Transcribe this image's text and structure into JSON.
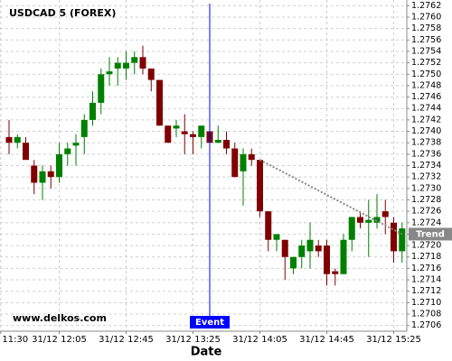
{
  "chart_data": {
    "type": "candlestick",
    "title": "USDCAD 5 (FOREX)",
    "watermark": "www.delkos.com",
    "x_label": "Date",
    "up_color": "#008000",
    "down_color": "#800000",
    "grid": true,
    "ylim": [
      1.2705,
      1.2763
    ],
    "yticks": [
      1.2706,
      1.2708,
      {
        "value": 1.271,
        "label": "1.2710"
      },
      1.2712,
      1.2714,
      1.2716,
      1.2718,
      {
        "value": 1.272,
        "label": "1.2720"
      },
      1.2722,
      1.2724,
      1.2726,
      1.2728,
      {
        "value": 1.273,
        "label": "1.2730"
      },
      1.2732,
      1.2734,
      1.2736,
      1.2738,
      {
        "value": 1.274,
        "label": "1.2740"
      },
      1.2742,
      1.2744,
      1.2746,
      1.2748,
      {
        "value": 1.275,
        "label": "1.2750"
      },
      1.2752,
      1.2754,
      1.2756,
      1.2758,
      {
        "value": 1.276,
        "label": "1.2760"
      },
      1.2762
    ],
    "xticks": [
      "31/12 11:30",
      "31/12 12:05",
      "31/12 12:45",
      "31/12 13:25",
      "31/12 14:05",
      "31/12 14:45",
      "31/12 15:25"
    ],
    "x": [
      "31/12 11:35",
      "31/12 11:40",
      "31/12 11:45",
      "31/12 11:50",
      "31/12 11:55",
      "31/12 12:00",
      "31/12 12:05",
      "31/12 12:10",
      "31/12 12:15",
      "31/12 12:20",
      "31/12 12:25",
      "31/12 12:30",
      "31/12 12:35",
      "31/12 12:40",
      "31/12 12:45",
      "31/12 12:50",
      "31/12 12:55",
      "31/12 13:00",
      "31/12 13:05",
      "31/12 13:10",
      "31/12 13:15",
      "31/12 13:20",
      "31/12 13:25",
      "31/12 13:30",
      "31/12 13:35",
      "31/12 13:40",
      "31/12 13:45",
      "31/12 13:50",
      "31/12 13:55",
      "31/12 14:00",
      "31/12 14:05",
      "31/12 14:10",
      "31/12 14:15",
      "31/12 14:20",
      "31/12 14:25",
      "31/12 14:30",
      "31/12 14:35",
      "31/12 14:40",
      "31/12 14:45",
      "31/12 14:50",
      "31/12 14:55",
      "31/12 15:00",
      "31/12 15:05",
      "31/12 15:10",
      "31/12 15:15",
      "31/12 15:20",
      "31/12 15:25",
      "31/12 15:30"
    ],
    "open": [
      1.2739,
      1.2738,
      1.2738,
      1.2734,
      1.2731,
      1.2733,
      1.2732,
      1.2736,
      1.27375,
      1.2739,
      1.2742,
      1.2745,
      1.275,
      1.2751,
      1.2751,
      1.2752,
      1.2753,
      1.2751,
      1.2749,
      1.2741,
      1.27405,
      1.274,
      1.27395,
      1.2739,
      1.274,
      1.2738,
      1.27385,
      1.2737,
      1.2733,
      1.2736,
      1.2735,
      1.2726,
      1.2721,
      1.2721,
      1.2716,
      1.2718,
      1.2719,
      1.272,
      1.272,
      1.27155,
      1.2715,
      1.2721,
      1.2725,
      1.2724,
      1.2724,
      1.2726,
      1.2724,
      1.2719
    ],
    "high": [
      1.2742,
      1.27395,
      1.2739,
      1.2735,
      1.2734,
      1.2734,
      1.2738,
      1.2738,
      1.27395,
      1.2743,
      1.2747,
      1.2751,
      1.2753,
      1.2753,
      1.2754,
      1.2754,
      1.2755,
      1.2751,
      1.2749,
      1.2741,
      1.2742,
      1.2743,
      1.274,
      1.2741,
      1.2742,
      1.2741,
      1.274,
      1.2738,
      1.2737,
      1.2737,
      1.2735,
      1.2726,
      1.2722,
      1.2721,
      1.2718,
      1.2721,
      1.2724,
      1.2721,
      1.2721,
      1.2716,
      1.2722,
      1.2725,
      1.2726,
      1.2728,
      1.2729,
      1.2728,
      1.2725,
      1.2724
    ],
    "low": [
      1.2736,
      1.2737,
      1.2735,
      1.2729,
      1.2728,
      1.273,
      1.2731,
      1.2734,
      1.2734,
      1.2736,
      1.2741,
      1.2743,
      1.2748,
      1.2748,
      1.2749,
      1.275,
      1.275,
      1.2747,
      1.2741,
      1.2738,
      1.2739,
      1.2736,
      1.2736,
      1.2737,
      1.2738,
      1.2738,
      1.2736,
      1.2732,
      1.2727,
      1.2734,
      1.2725,
      1.2719,
      1.2719,
      1.2714,
      1.2715,
      1.2716,
      1.2716,
      1.2718,
      1.2713,
      1.2713,
      1.2715,
      1.2719,
      1.2723,
      1.2718,
      1.2723,
      1.2722,
      1.2717,
      1.2717
    ],
    "close": [
      1.2738,
      1.2739,
      1.2735,
      1.2731,
      1.2733,
      1.2732,
      1.2736,
      1.2737,
      1.2738,
      1.2742,
      1.2745,
      1.275,
      1.27505,
      1.2752,
      1.2752,
      1.2753,
      1.2751,
      1.2749,
      1.2741,
      1.2738,
      1.2741,
      1.27395,
      1.2739,
      1.2741,
      1.2738,
      1.27385,
      1.2737,
      1.2732,
      1.2736,
      1.2735,
      1.2726,
      1.2721,
      1.2722,
      1.2718,
      1.2718,
      1.272,
      1.2721,
      1.2719,
      1.2715,
      1.2715,
      1.2721,
      1.2725,
      1.2724,
      1.27245,
      1.2725,
      1.2725,
      1.2719,
      1.2723
    ],
    "event": {
      "x": "31/12 13:35",
      "label": "Event",
      "color": "#0000ff"
    },
    "trend": {
      "label": "Trend",
      "color": "#888888",
      "start": {
        "x": "31/12 14:05",
        "y": 1.2735
      },
      "end": {
        "x": "31/12 15:30",
        "y": 1.2722
      }
    }
  }
}
